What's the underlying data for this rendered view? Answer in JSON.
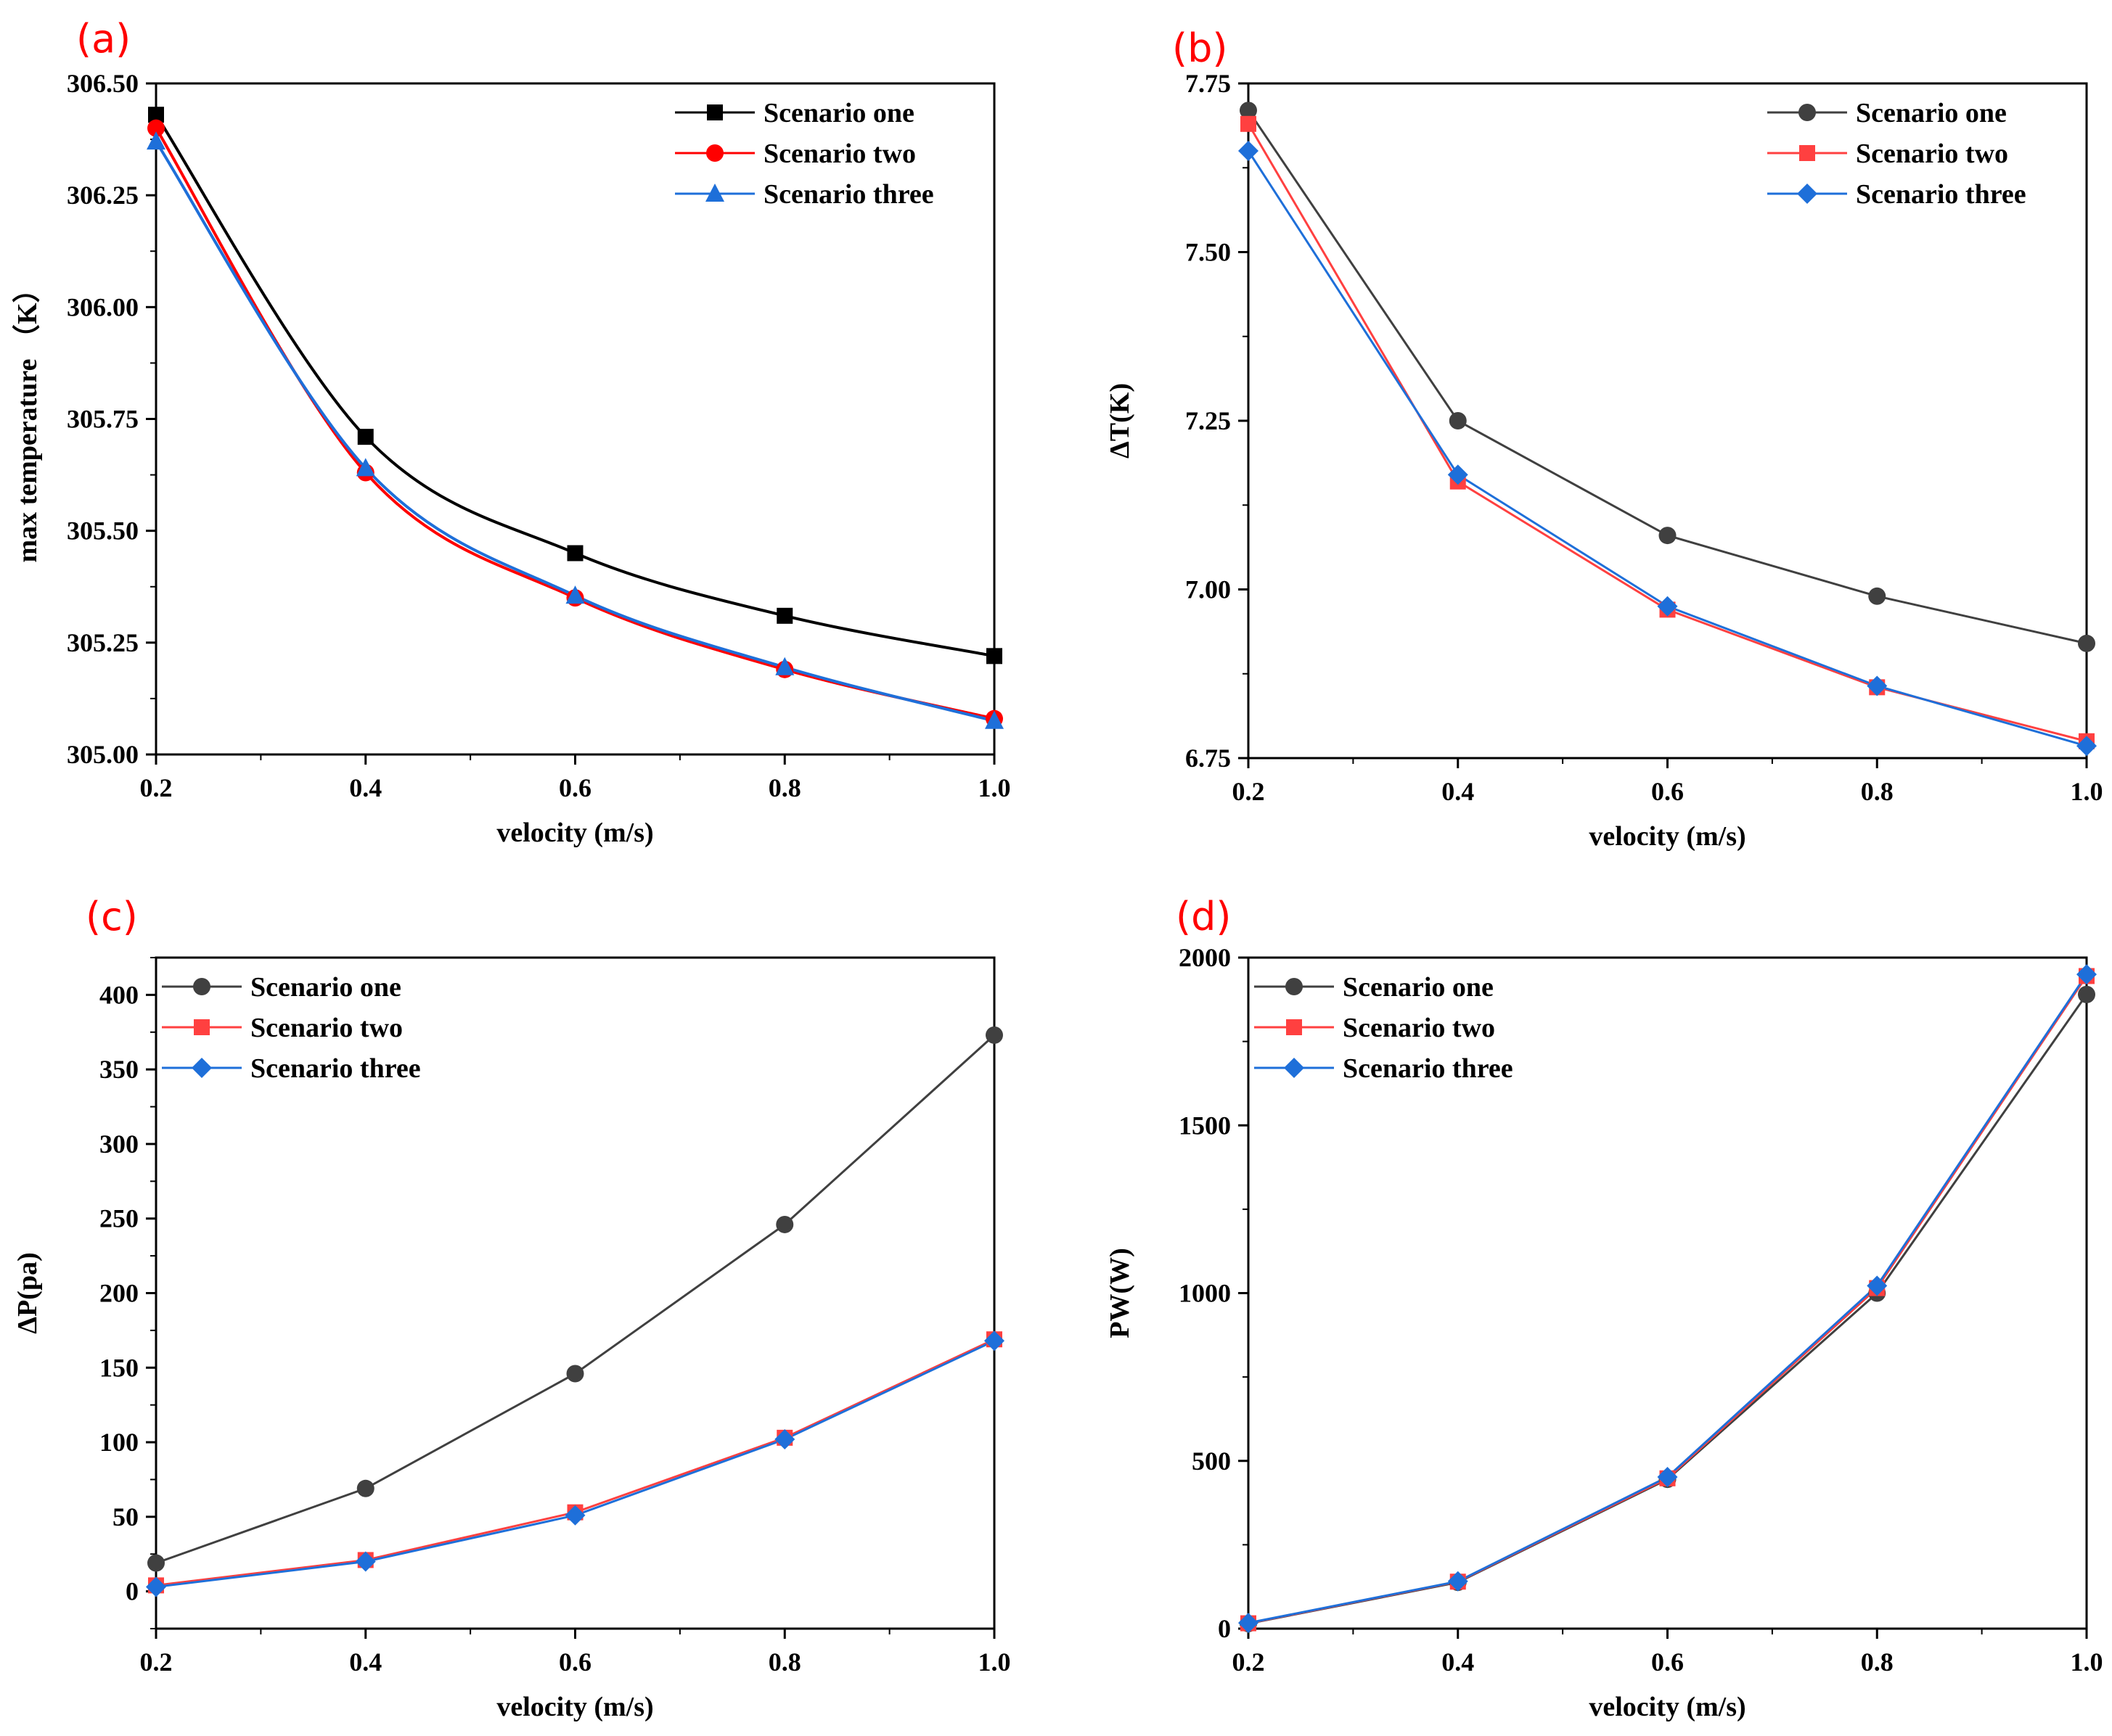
{
  "chart_data": [
    {
      "panel_label": "(a)",
      "type": "line",
      "smooth": true,
      "xlabel": "velocity (m/s)",
      "ylabel": "max temperature （K）",
      "xlim": [
        0.2,
        1.0
      ],
      "ylim": [
        305.0,
        306.5
      ],
      "xticks": [
        "0.2",
        "0.4",
        "0.6",
        "0.8",
        "1.0"
      ],
      "yticks": [
        "305.00",
        "305.25",
        "305.50",
        "305.75",
        "306.00",
        "306.25",
        "306.50"
      ],
      "legend_position": "top-right",
      "x": [
        0.2,
        0.4,
        0.6,
        0.8,
        1.0
      ],
      "series": [
        {
          "name": "Scenario one",
          "color": "#000000",
          "marker": "square",
          "values": [
            306.43,
            305.71,
            305.45,
            305.31,
            305.22
          ]
        },
        {
          "name": "Scenario two",
          "color": "#ff0000",
          "marker": "circle",
          "values": [
            306.4,
            305.63,
            305.35,
            305.19,
            305.08
          ]
        },
        {
          "name": "Scenario three",
          "color": "#1e6fd9",
          "marker": "triangle",
          "values": [
            306.37,
            305.64,
            305.355,
            305.195,
            305.075
          ]
        }
      ]
    },
    {
      "panel_label": "(b)",
      "type": "line",
      "smooth": false,
      "xlabel": "velocity (m/s)",
      "ylabel": "ΔT(K)",
      "xlim": [
        0.2,
        1.0
      ],
      "ylim": [
        6.75,
        7.75
      ],
      "xticks": [
        "0.2",
        "0.4",
        "0.6",
        "0.8",
        "1.0"
      ],
      "yticks": [
        "6.75",
        "7.00",
        "7.25",
        "7.50",
        "7.75"
      ],
      "legend_position": "top-right",
      "x": [
        0.2,
        0.4,
        0.6,
        0.8,
        1.0
      ],
      "series": [
        {
          "name": "Scenario one",
          "color": "#404040",
          "marker": "circle",
          "values": [
            7.71,
            7.25,
            7.08,
            6.99,
            6.92
          ]
        },
        {
          "name": "Scenario two",
          "color": "#ff4040",
          "marker": "square",
          "values": [
            7.69,
            7.16,
            6.97,
            6.855,
            6.775
          ]
        },
        {
          "name": "Scenario three",
          "color": "#1e6fd9",
          "marker": "diamond",
          "values": [
            7.65,
            7.17,
            6.975,
            6.857,
            6.768
          ]
        }
      ]
    },
    {
      "panel_label": "(c)",
      "type": "line",
      "smooth": false,
      "xlabel": "velocity (m/s)",
      "ylabel": "ΔP(pa)",
      "xlim": [
        0.2,
        1.0
      ],
      "ylim": [
        -25,
        425
      ],
      "xticks": [
        "0.2",
        "0.4",
        "0.6",
        "0.8",
        "1.0"
      ],
      "yticks": [
        "0",
        "50",
        "100",
        "150",
        "200",
        "250",
        "300",
        "350",
        "400"
      ],
      "legend_position": "top-left",
      "x": [
        0.2,
        0.4,
        0.6,
        0.8,
        1.0
      ],
      "series": [
        {
          "name": "Scenario one",
          "color": "#404040",
          "marker": "circle",
          "values": [
            19,
            69,
            146,
            246,
            373
          ]
        },
        {
          "name": "Scenario two",
          "color": "#ff4040",
          "marker": "square",
          "values": [
            4,
            21,
            53,
            103,
            169
          ]
        },
        {
          "name": "Scenario three",
          "color": "#1e6fd9",
          "marker": "diamond",
          "values": [
            3,
            20,
            51,
            102,
            168
          ]
        }
      ]
    },
    {
      "panel_label": "(d)",
      "type": "line",
      "smooth": false,
      "xlabel": "velocity (m/s)",
      "ylabel": "PW(W)",
      "xlim": [
        0.2,
        1.0
      ],
      "ylim": [
        0,
        2000
      ],
      "xticks": [
        "0.2",
        "0.4",
        "0.6",
        "0.8",
        "1.0"
      ],
      "yticks": [
        "0",
        "500",
        "1000",
        "1500",
        "2000"
      ],
      "legend_position": "top-left",
      "x": [
        0.2,
        0.4,
        0.6,
        0.8,
        1.0
      ],
      "series": [
        {
          "name": "Scenario one",
          "color": "#404040",
          "marker": "circle",
          "values": [
            15,
            138,
            445,
            1000,
            1890
          ]
        },
        {
          "name": "Scenario two",
          "color": "#ff4040",
          "marker": "square",
          "values": [
            16,
            140,
            448,
            1015,
            1945
          ]
        },
        {
          "name": "Scenario three",
          "color": "#1e6fd9",
          "marker": "diamond",
          "values": [
            17,
            141,
            452,
            1022,
            1950
          ]
        }
      ]
    }
  ]
}
